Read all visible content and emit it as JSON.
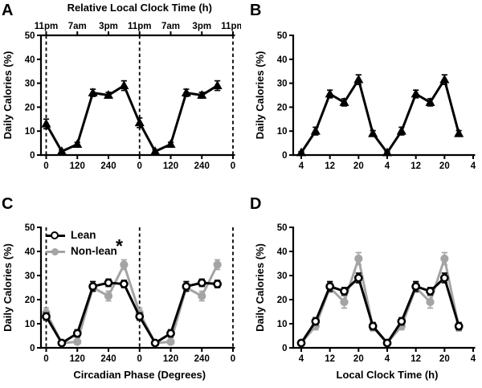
{
  "figure": {
    "background": "#ffffff",
    "accent_black": "#000000",
    "accent_gray": "#a4a4a4"
  },
  "chart_data": [
    {
      "label": "A",
      "type": "line",
      "ylabel": "Daily Calories (%)",
      "ylim": [
        0,
        50
      ],
      "yticks": [
        0,
        10,
        20,
        30,
        40,
        50
      ],
      "xlim": [
        0,
        720
      ],
      "xticks": [
        0,
        120,
        240,
        360,
        480,
        600,
        720
      ],
      "xtick_labels": [
        "0",
        "120",
        "240",
        "0",
        "120",
        "240",
        "0"
      ],
      "xlabel": "",
      "top_axis": {
        "title": "Relative Local Clock Time (h)",
        "ticks": [
          0,
          120,
          240,
          360,
          480,
          600,
          720
        ],
        "tick_labels": [
          "11pm",
          "7am",
          "3pm",
          "11pm",
          "7am",
          "3pm",
          "11pm"
        ]
      },
      "dashed_vlines": [
        0,
        360,
        720
      ],
      "axis_offset": false,
      "series": [
        {
          "color": "#000000",
          "marker": "triangle-filled",
          "x": [
            0,
            60,
            120,
            180,
            240,
            300,
            360,
            420,
            480,
            540,
            600,
            660
          ],
          "y": [
            13,
            1.5,
            4.5,
            26,
            25,
            29,
            13.5,
            1.5,
            4.5,
            26,
            25,
            29
          ],
          "err": [
            2,
            0.6,
            0.8,
            1.5,
            1.2,
            2,
            2,
            0.6,
            0.8,
            1.5,
            1.2,
            2
          ]
        }
      ]
    },
    {
      "label": "B",
      "type": "line",
      "ylabel": "Daily Calories (%)",
      "ylim": [
        0,
        50
      ],
      "yticks": [
        0,
        10,
        20,
        30,
        40,
        50
      ],
      "xlim": [
        4,
        52
      ],
      "xticks": [
        4,
        12,
        20,
        28,
        36,
        44,
        52
      ],
      "xtick_labels": [
        "4",
        "12",
        "20",
        "4",
        "12",
        "20",
        "4"
      ],
      "xlabel": "",
      "dashed_vlines": [],
      "axis_offset": true,
      "series": [
        {
          "color": "#000000",
          "marker": "triangle-filled",
          "x": [
            4,
            8,
            12,
            16,
            20,
            24,
            28,
            32,
            36,
            40,
            44,
            48
          ],
          "y": [
            1,
            10,
            25.5,
            22,
            31.5,
            9,
            1,
            10,
            25.5,
            22,
            31.5,
            9
          ],
          "err": [
            0.4,
            1.6,
            1.6,
            1.5,
            2,
            1.2,
            0.4,
            1.6,
            1.6,
            1.5,
            2,
            1.2
          ]
        }
      ]
    },
    {
      "label": "C",
      "type": "line",
      "ylabel": "Daily Calories (%)",
      "xlabel": "Circadian Phase (Degrees)",
      "ylim": [
        0,
        50
      ],
      "yticks": [
        0,
        10,
        20,
        30,
        40,
        50
      ],
      "xlim": [
        0,
        720
      ],
      "xticks": [
        0,
        120,
        240,
        360,
        480,
        600,
        720
      ],
      "xtick_labels": [
        "0",
        "120",
        "240",
        "0",
        "120",
        "240",
        "0"
      ],
      "dashed_vlines": [
        0,
        360,
        720
      ],
      "axis_offset": false,
      "legend": {
        "position": "top-left",
        "items": [
          {
            "label": "Lean",
            "marker": "circle-open",
            "color": "#000000"
          },
          {
            "label": "Non-lean",
            "marker": "circle-filled",
            "color": "#a4a4a4"
          }
        ]
      },
      "annotation": "*",
      "series": [
        {
          "name": "Lean",
          "color": "#000000",
          "marker": "circle-open",
          "x": [
            0,
            60,
            120,
            180,
            240,
            300,
            360,
            420,
            480,
            540,
            600,
            660
          ],
          "y": [
            13,
            2,
            6,
            25.5,
            27,
            26.5,
            13,
            2,
            6,
            25.5,
            27,
            26.5
          ],
          "err": [
            1.5,
            0.5,
            1.5,
            2,
            1.5,
            1.5,
            1.5,
            0.5,
            1.5,
            2,
            1.5,
            1.5
          ]
        },
        {
          "name": "Non-lean",
          "color": "#a4a4a4",
          "marker": "circle-filled",
          "x": [
            0,
            60,
            120,
            180,
            240,
            300,
            360,
            420,
            480,
            540,
            600,
            660
          ],
          "y": [
            14.5,
            2,
            2.5,
            25,
            21.5,
            34.5,
            14.5,
            2,
            2.5,
            25,
            21.5,
            34.5
          ],
          "err": [
            2,
            0.5,
            0.7,
            1.5,
            2,
            2,
            2,
            0.5,
            0.7,
            1.5,
            2,
            2
          ]
        }
      ]
    },
    {
      "label": "D",
      "type": "line",
      "ylabel": "Daily Calories (%)",
      "xlabel": "Local Clock Time (h)",
      "ylim": [
        0,
        50
      ],
      "yticks": [
        0,
        10,
        20,
        30,
        40,
        50
      ],
      "xlim": [
        4,
        52
      ],
      "xticks": [
        4,
        12,
        20,
        28,
        36,
        44,
        52
      ],
      "xtick_labels": [
        "4",
        "12",
        "20",
        "4",
        "12",
        "20",
        "4"
      ],
      "dashed_vlines": [],
      "axis_offset": true,
      "series": [
        {
          "name": "Lean",
          "color": "#000000",
          "marker": "circle-open",
          "x": [
            4,
            8,
            12,
            16,
            20,
            24,
            28,
            32,
            36,
            40,
            44,
            48
          ],
          "y": [
            2,
            11,
            25.5,
            23.5,
            29,
            9,
            2,
            11,
            25.5,
            23.5,
            29,
            9
          ],
          "err": [
            0.5,
            1.5,
            2,
            1.5,
            2,
            1.5,
            0.5,
            1.5,
            2,
            1.5,
            2,
            1.5
          ]
        },
        {
          "name": "Non-lean",
          "color": "#a4a4a4",
          "marker": "circle-filled",
          "x": [
            4,
            8,
            12,
            16,
            20,
            24,
            28,
            32,
            36,
            40,
            44,
            48
          ],
          "y": [
            2,
            9,
            25,
            19,
            37,
            8.5,
            2,
            9,
            25,
            19,
            37,
            8.5
          ],
          "err": [
            0.5,
            1.5,
            2,
            2.5,
            2.5,
            1.5,
            0.5,
            1.5,
            2,
            2.5,
            2.5,
            1.5
          ]
        }
      ]
    }
  ]
}
